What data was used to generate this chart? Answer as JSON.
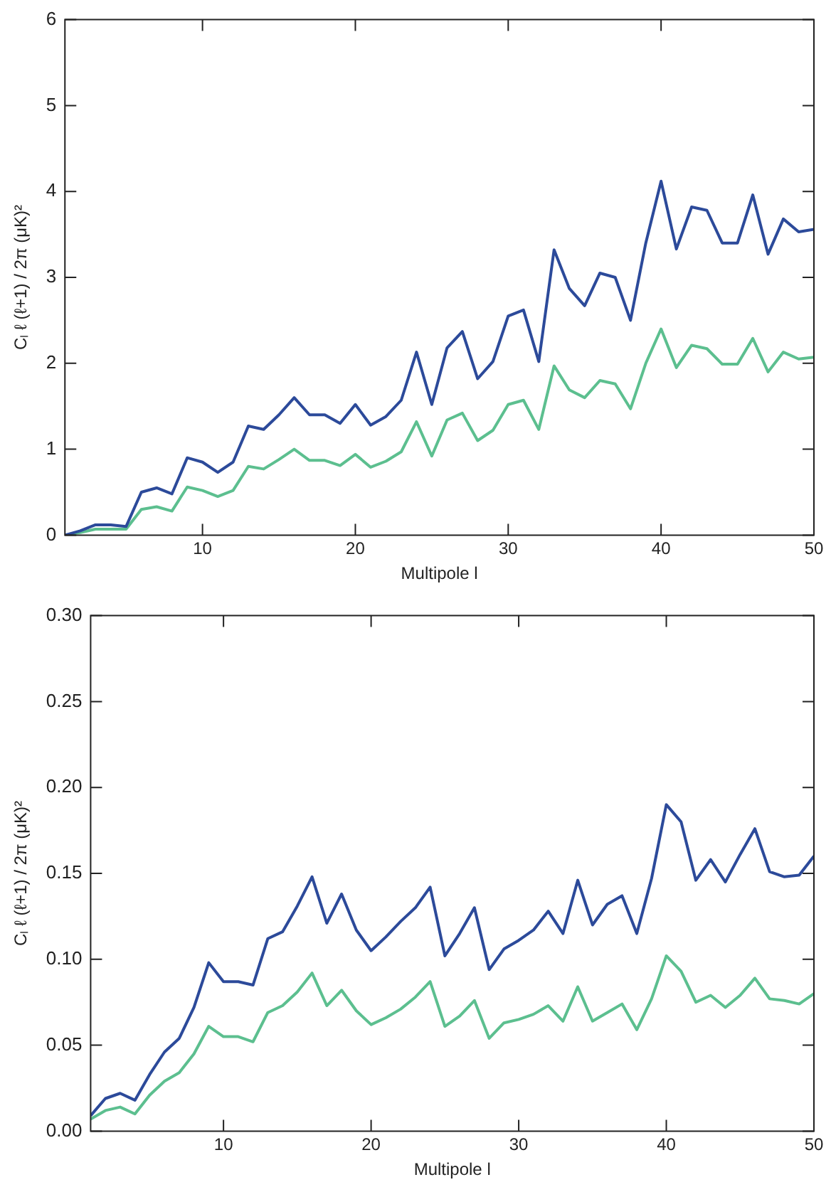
{
  "chart_data": [
    {
      "type": "line",
      "xlabel": "Multipole l",
      "ylabel": "Cₗ ℓ (ℓ+1) / 2π (μK)²",
      "x": [
        1,
        2,
        3,
        4,
        5,
        6,
        7,
        8,
        9,
        10,
        11,
        12,
        13,
        14,
        15,
        16,
        17,
        18,
        19,
        20,
        21,
        22,
        23,
        24,
        25,
        26,
        27,
        28,
        29,
        30,
        31,
        32,
        33,
        34,
        35,
        36,
        37,
        38,
        39,
        40,
        41,
        42,
        43,
        44,
        45,
        46,
        47,
        48,
        49,
        50
      ],
      "xlim": [
        1,
        50
      ],
      "xticks": [
        10,
        20,
        30,
        40,
        50
      ],
      "ylim": [
        0,
        6
      ],
      "yticks": [
        0,
        1,
        2,
        3,
        4,
        5,
        6
      ],
      "grid": false,
      "legend": false,
      "marker": "none",
      "series": [
        {
          "color": "#2c4a9a",
          "values": [
            0,
            0.05,
            0.12,
            0.12,
            0.1,
            0.5,
            0.55,
            0.48,
            0.9,
            0.85,
            0.73,
            0.85,
            1.27,
            1.23,
            1.4,
            1.6,
            1.4,
            1.4,
            1.3,
            1.52,
            1.28,
            1.38,
            1.57,
            2.13,
            1.52,
            2.18,
            2.37,
            1.82,
            2.02,
            2.55,
            2.62,
            2.02,
            3.32,
            2.87,
            2.67,
            3.05,
            3.0,
            2.5,
            3.4,
            4.12,
            3.33,
            3.82,
            3.78,
            3.4,
            3.4,
            3.96,
            3.27,
            3.68,
            3.53,
            3.56
          ]
        },
        {
          "color": "#5cbf8f",
          "values": [
            0,
            0.03,
            0.07,
            0.07,
            0.07,
            0.3,
            0.33,
            0.28,
            0.56,
            0.52,
            0.45,
            0.52,
            0.8,
            0.77,
            0.88,
            1.0,
            0.87,
            0.87,
            0.81,
            0.94,
            0.79,
            0.86,
            0.97,
            1.32,
            0.92,
            1.34,
            1.42,
            1.1,
            1.22,
            1.52,
            1.57,
            1.23,
            1.97,
            1.69,
            1.6,
            1.8,
            1.76,
            1.47,
            2.0,
            2.4,
            1.95,
            2.21,
            2.17,
            1.99,
            1.99,
            2.29,
            1.9,
            2.13,
            2.05,
            2.07
          ]
        }
      ]
    },
    {
      "type": "line",
      "xlabel": "Multipole l",
      "ylabel": "Cₗ ℓ (ℓ+1) / 2π (μK)²",
      "x": [
        1,
        2,
        3,
        4,
        5,
        6,
        7,
        8,
        9,
        10,
        11,
        12,
        13,
        14,
        15,
        16,
        17,
        18,
        19,
        20,
        21,
        22,
        23,
        24,
        25,
        26,
        27,
        28,
        29,
        30,
        31,
        32,
        33,
        34,
        35,
        36,
        37,
        38,
        39,
        40,
        41,
        42,
        43,
        44,
        45,
        46,
        47,
        48,
        49,
        50
      ],
      "xlim": [
        1,
        50
      ],
      "xticks": [
        10,
        20,
        30,
        40,
        50
      ],
      "ylim": [
        0,
        0.3
      ],
      "yticks": [
        {
          "value": 0,
          "label": "0.00"
        },
        {
          "value": 0.05,
          "label": "0.05"
        },
        {
          "value": 0.1,
          "label": "0.10"
        },
        {
          "value": 0.15,
          "label": "0.15"
        },
        {
          "value": 0.2,
          "label": "0.20"
        },
        {
          "value": 0.25,
          "label": "0.25"
        },
        {
          "value": 0.3,
          "label": "0.30"
        }
      ],
      "grid": false,
      "legend": false,
      "marker": "none",
      "series": [
        {
          "color": "#2c4a9a",
          "values": [
            0.009,
            0.019,
            0.022,
            0.018,
            0.033,
            0.046,
            0.054,
            0.072,
            0.098,
            0.087,
            0.087,
            0.085,
            0.112,
            0.116,
            0.131,
            0.148,
            0.121,
            0.138,
            0.117,
            0.105,
            0.113,
            0.122,
            0.13,
            0.142,
            0.102,
            0.115,
            0.13,
            0.094,
            0.106,
            0.111,
            0.117,
            0.128,
            0.115,
            0.146,
            0.12,
            0.132,
            0.137,
            0.115,
            0.147,
            0.19,
            0.18,
            0.146,
            0.158,
            0.145,
            0.161,
            0.176,
            0.151,
            0.148,
            0.149,
            0.16
          ]
        },
        {
          "color": "#5cbf8f",
          "values": [
            0.007,
            0.012,
            0.014,
            0.01,
            0.021,
            0.029,
            0.034,
            0.045,
            0.061,
            0.055,
            0.055,
            0.052,
            0.069,
            0.073,
            0.081,
            0.092,
            0.073,
            0.082,
            0.07,
            0.062,
            0.066,
            0.071,
            0.078,
            0.087,
            0.061,
            0.067,
            0.076,
            0.054,
            0.063,
            0.065,
            0.068,
            0.073,
            0.064,
            0.084,
            0.064,
            0.069,
            0.074,
            0.059,
            0.077,
            0.102,
            0.093,
            0.075,
            0.079,
            0.072,
            0.079,
            0.089,
            0.077,
            0.076,
            0.074,
            0.08
          ]
        }
      ]
    }
  ]
}
